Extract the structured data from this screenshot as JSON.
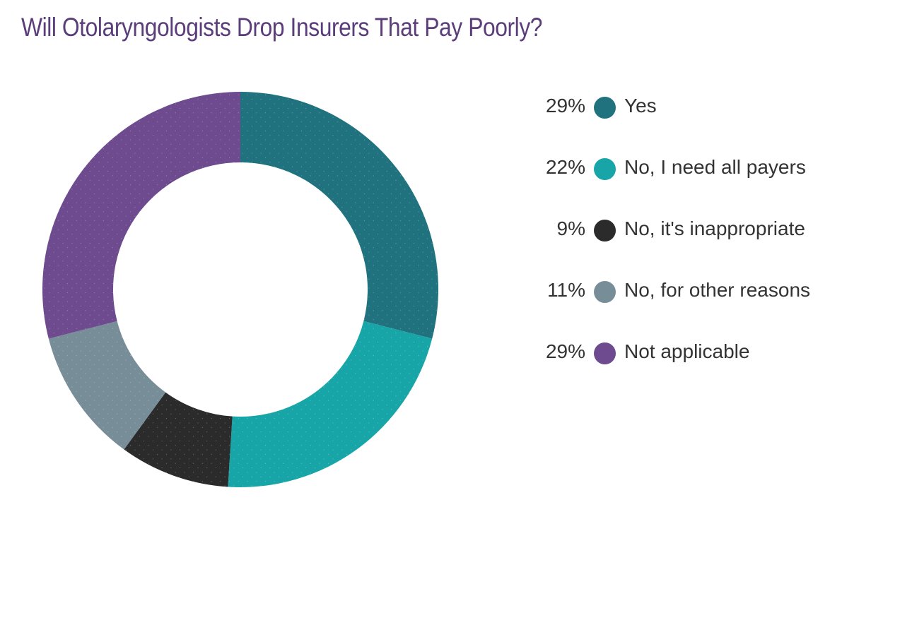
{
  "chart_data": {
    "type": "pie",
    "style": "donut",
    "title": "Will Otolaryngologists Drop Insurers That Pay Poorly?",
    "slices": [
      {
        "label": "Yes",
        "value": 29,
        "display": "29%",
        "color": "#1f727e"
      },
      {
        "label": "No, I need all payers",
        "value": 22,
        "display": "22%",
        "color": "#18a5a7"
      },
      {
        "label": "No, it's inappropriate",
        "value": 9,
        "display": "9%",
        "color": "#2b2b2b"
      },
      {
        "label": "No, for other reasons",
        "value": 11,
        "display": "11%",
        "color": "#778e99"
      },
      {
        "label": "Not applicable",
        "value": 29,
        "display": "29%",
        "color": "#6e4a8e"
      }
    ],
    "legend_position": "right"
  }
}
